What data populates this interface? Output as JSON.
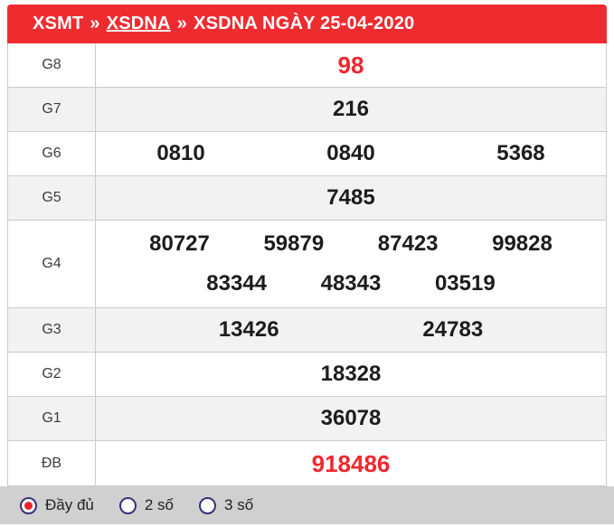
{
  "header": {
    "crumb1": "XSMT",
    "sep": "»",
    "crumb2": "XSDNA",
    "title": "XSDNA NGÀY 25-04-2020"
  },
  "table": {
    "rows": [
      {
        "label": "G8",
        "values": [
          "98"
        ],
        "highlight": true
      },
      {
        "label": "G7",
        "values": [
          "216"
        ],
        "highlight": false
      },
      {
        "label": "G6",
        "values": [
          "0810",
          "0840",
          "5368"
        ],
        "highlight": false
      },
      {
        "label": "G5",
        "values": [
          "7485"
        ],
        "highlight": false
      },
      {
        "label": "G4",
        "values": [
          "80727",
          "59879",
          "87423",
          "99828",
          "83344",
          "48343",
          "03519"
        ],
        "highlight": false
      },
      {
        "label": "G3",
        "values": [
          "13426",
          "24783"
        ],
        "highlight": false
      },
      {
        "label": "G2",
        "values": [
          "18328"
        ],
        "highlight": false
      },
      {
        "label": "G1",
        "values": [
          "36078"
        ],
        "highlight": false
      },
      {
        "label": "ĐB",
        "values": [
          "918486"
        ],
        "highlight": true
      }
    ]
  },
  "footer": {
    "options": [
      {
        "label": "Đầy đủ",
        "selected": true
      },
      {
        "label": "2 số",
        "selected": false
      },
      {
        "label": "3 số",
        "selected": false
      }
    ]
  },
  "colors": {
    "header_red": "#ee2c30",
    "value_red": "#f1272e",
    "row_alt_gray": "#f2f2f2",
    "border_gray": "#cccccc",
    "footer_gray": "#d0d0d0",
    "radio_border_navy": "#32327a",
    "radio_dot_red": "#e8242b"
  }
}
